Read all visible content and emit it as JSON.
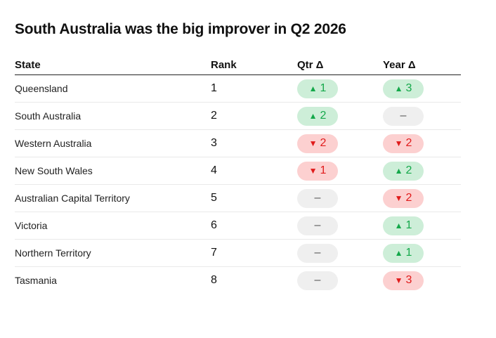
{
  "title": "South Australia was the big improver in Q2 2026",
  "columns": {
    "state": "State",
    "rank": "Rank",
    "qtr": "Qtr Δ",
    "year": "Year Δ"
  },
  "colors": {
    "up_bg": "#cdeed8",
    "up_fg": "#14a84a",
    "down_bg": "#fcd0d0",
    "down_fg": "#e01b1b",
    "neutral_bg": "#efefef"
  },
  "rows": [
    {
      "state": "Queensland",
      "rank": "1",
      "qtr": {
        "dir": "up",
        "text": "1"
      },
      "year": {
        "dir": "up",
        "text": "3"
      }
    },
    {
      "state": "South Australia",
      "rank": "2",
      "qtr": {
        "dir": "up",
        "text": "2"
      },
      "year": {
        "dir": "none",
        "text": "–"
      }
    },
    {
      "state": "Western Australia",
      "rank": "3",
      "qtr": {
        "dir": "down",
        "text": "2"
      },
      "year": {
        "dir": "down",
        "text": "2"
      }
    },
    {
      "state": "New South Wales",
      "rank": "4",
      "qtr": {
        "dir": "down",
        "text": "1"
      },
      "year": {
        "dir": "up",
        "text": "2"
      }
    },
    {
      "state": "Australian Capital Territory",
      "rank": "5",
      "qtr": {
        "dir": "none",
        "text": "–"
      },
      "year": {
        "dir": "down",
        "text": "2"
      }
    },
    {
      "state": "Victoria",
      "rank": "6",
      "qtr": {
        "dir": "none",
        "text": "–"
      },
      "year": {
        "dir": "up",
        "text": "1"
      }
    },
    {
      "state": "Northern Territory",
      "rank": "7",
      "qtr": {
        "dir": "none",
        "text": "–"
      },
      "year": {
        "dir": "up",
        "text": "1"
      }
    },
    {
      "state": "Tasmania",
      "rank": "8",
      "qtr": {
        "dir": "none",
        "text": "–"
      },
      "year": {
        "dir": "down",
        "text": "3"
      }
    }
  ]
}
